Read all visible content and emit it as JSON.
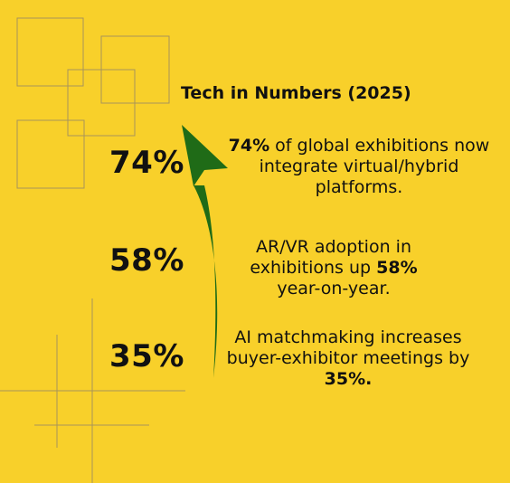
{
  "header": {
    "title": "Tech in Numbers (2025)"
  },
  "stats": [
    {
      "value_label": "74%",
      "value": 74,
      "text_parts": [
        {
          "text": "74%",
          "bold": true
        },
        {
          "text": " of global exhibitions now integrate virtual/hybrid platforms.",
          "bold": false
        }
      ]
    },
    {
      "value_label": "58%",
      "value": 58,
      "text_parts": [
        {
          "text": "AR/VR adoption in exhibitions up ",
          "bold": false
        },
        {
          "text": "58%",
          "bold": true
        },
        {
          "text": " year-on-year.",
          "bold": false
        }
      ]
    },
    {
      "value_label": "35%",
      "value": 35,
      "text_parts": [
        {
          "text": "AI matchmaking increases buyer-exhibitor meetings by ",
          "bold": false
        },
        {
          "text": "35%.",
          "bold": true
        }
      ]
    }
  ],
  "colors": {
    "background": "#f8d02a",
    "arrow": "#1f6b17",
    "lines": "#a0823a",
    "text": "#111111"
  },
  "icons": {
    "arrow": "up-arrow-icon"
  }
}
